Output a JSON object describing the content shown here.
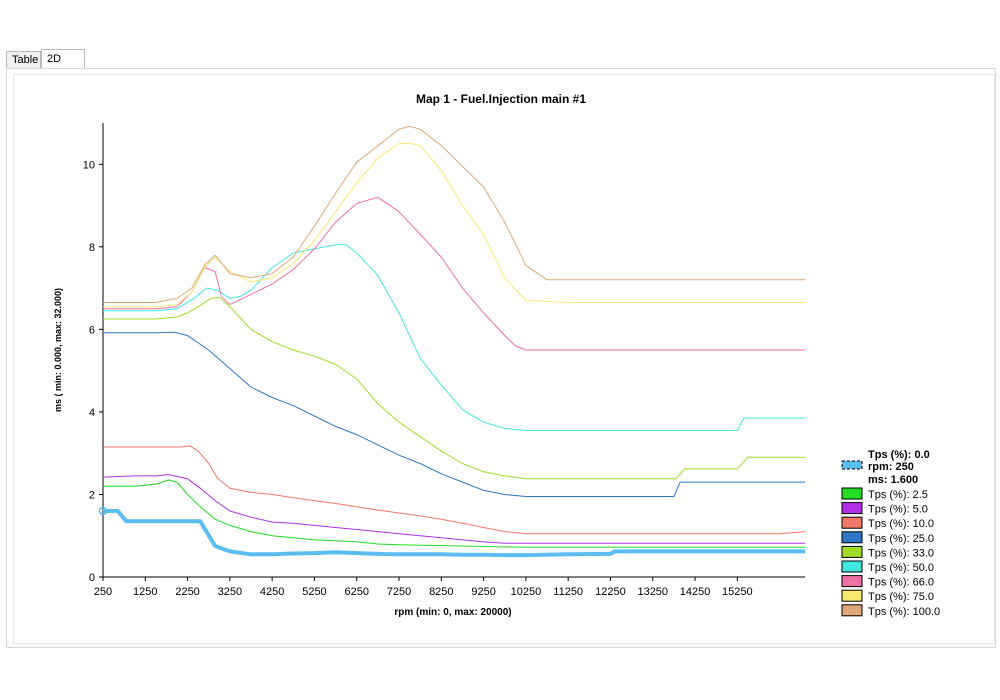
{
  "tabs": [
    {
      "label": "Table",
      "active": false
    },
    {
      "label": "2D",
      "active": true
    }
  ],
  "chart_data": {
    "type": "line",
    "title": "Map 1 - Fuel.Injection main #1",
    "xlabel": "rpm (min: 0, max: 20000)",
    "ylabel": "ms ( min: 0.000, max: 32.000)",
    "xlim": [
      250,
      16850
    ],
    "ylim": [
      0,
      11
    ],
    "x_ticks": [
      "250",
      "1250",
      "2250",
      "3250",
      "4250",
      "5250",
      "6250",
      "7250",
      "8250",
      "9250",
      "10250",
      "11250",
      "12250",
      "13250",
      "14250",
      "15250"
    ],
    "y_ticks": [
      "0",
      "2",
      "4",
      "6",
      "8",
      "10"
    ],
    "cursor": {
      "tps_label": "Tps (%): 0.0",
      "rpm_label": "rpm: 250",
      "ms_label": "ms: 1.600",
      "x": 250,
      "y": 1.6
    },
    "legend_position": "right",
    "series": [
      {
        "name": "Tps (%): 0.0",
        "color": "#5bbcf0",
        "width": 4,
        "x": [
          250,
          600,
          800,
          1200,
          2250,
          2550,
          2900,
          3250,
          3750,
          4250,
          4750,
          5250,
          5750,
          6250,
          6750,
          7250,
          7750,
          8250,
          8750,
          9250,
          9750,
          10250,
          11250,
          12250,
          12350,
          13250,
          14250,
          15250,
          16250,
          16850
        ],
        "y": [
          1.6,
          1.6,
          1.35,
          1.35,
          1.35,
          1.35,
          0.75,
          0.62,
          0.55,
          0.55,
          0.57,
          0.58,
          0.6,
          0.58,
          0.56,
          0.55,
          0.55,
          0.55,
          0.54,
          0.54,
          0.53,
          0.53,
          0.55,
          0.56,
          0.62,
          0.62,
          0.62,
          0.62,
          0.62,
          0.62
        ]
      },
      {
        "name": "Tps (%): 2.5",
        "color": "#22dd22",
        "width": 1,
        "x": [
          250,
          1000,
          1500,
          1800,
          2000,
          2250,
          2550,
          2900,
          3250,
          3750,
          4250,
          4750,
          5250,
          5750,
          6250,
          6750,
          7250,
          7750,
          8250,
          8750,
          9250,
          9750,
          10250,
          11250,
          12250,
          13250,
          14250,
          15250,
          16250,
          16850
        ],
        "y": [
          2.2,
          2.2,
          2.25,
          2.35,
          2.3,
          2.0,
          1.7,
          1.4,
          1.25,
          1.1,
          1.0,
          0.95,
          0.9,
          0.88,
          0.85,
          0.8,
          0.78,
          0.77,
          0.76,
          0.75,
          0.74,
          0.73,
          0.72,
          0.72,
          0.72,
          0.72,
          0.72,
          0.72,
          0.72,
          0.72
        ]
      },
      {
        "name": "Tps (%): 5.0",
        "color": "#b030e8",
        "width": 1,
        "x": [
          250,
          1000,
          1500,
          1800,
          2250,
          2550,
          2900,
          3250,
          3750,
          4250,
          4750,
          5250,
          5750,
          6250,
          6750,
          7250,
          7750,
          8250,
          8750,
          9250,
          9750,
          10250,
          11250,
          12250,
          13250,
          14250,
          15250,
          16250,
          16850
        ],
        "y": [
          2.42,
          2.45,
          2.45,
          2.48,
          2.38,
          2.15,
          1.85,
          1.6,
          1.45,
          1.33,
          1.3,
          1.25,
          1.2,
          1.15,
          1.1,
          1.05,
          1.0,
          0.95,
          0.9,
          0.85,
          0.82,
          0.82,
          0.82,
          0.82,
          0.82,
          0.82,
          0.82,
          0.82,
          0.82
        ]
      },
      {
        "name": "Tps (%): 10.0",
        "color": "#f07868",
        "width": 1,
        "x": [
          250,
          1000,
          1500,
          2100,
          2300,
          2500,
          2750,
          2950,
          3250,
          3750,
          4250,
          4750,
          5250,
          5750,
          6250,
          6750,
          7250,
          7750,
          8250,
          8750,
          9250,
          9750,
          10250,
          11250,
          12250,
          13250,
          14250,
          15250,
          16250,
          16850
        ],
        "y": [
          3.15,
          3.15,
          3.15,
          3.15,
          3.18,
          3.05,
          2.75,
          2.4,
          2.15,
          2.05,
          2.0,
          1.92,
          1.85,
          1.78,
          1.7,
          1.62,
          1.55,
          1.48,
          1.4,
          1.3,
          1.2,
          1.1,
          1.05,
          1.05,
          1.05,
          1.05,
          1.05,
          1.05,
          1.05,
          1.1
        ]
      },
      {
        "name": "Tps (%): 25.0",
        "color": "#2f78c8",
        "width": 1,
        "x": [
          250,
          1000,
          1500,
          1950,
          2250,
          2750,
          3250,
          3750,
          4250,
          4750,
          5250,
          5750,
          6250,
          6750,
          7250,
          7750,
          8250,
          8750,
          9250,
          9750,
          10250,
          11250,
          12250,
          13250,
          13750,
          13900,
          14250,
          15250,
          16250,
          16850
        ],
        "y": [
          5.92,
          5.92,
          5.92,
          5.93,
          5.85,
          5.5,
          5.05,
          4.6,
          4.35,
          4.15,
          3.9,
          3.65,
          3.45,
          3.2,
          2.95,
          2.75,
          2.5,
          2.3,
          2.1,
          2.0,
          1.95,
          1.95,
          1.95,
          1.95,
          1.95,
          2.3,
          2.3,
          2.3,
          2.3,
          2.3
        ]
      },
      {
        "name": "Tps (%): 33.0",
        "color": "#a0dc28",
        "width": 1,
        "x": [
          250,
          1000,
          1500,
          2000,
          2250,
          2500,
          2800,
          3000,
          3250,
          3750,
          4250,
          4750,
          5250,
          5750,
          6250,
          6750,
          7250,
          7750,
          8250,
          8750,
          9250,
          9750,
          10250,
          11250,
          12250,
          13250,
          13800,
          14000,
          15250,
          15500,
          16250,
          16850
        ],
        "y": [
          6.25,
          6.25,
          6.25,
          6.3,
          6.4,
          6.55,
          6.75,
          6.78,
          6.55,
          6.0,
          5.7,
          5.5,
          5.35,
          5.15,
          4.8,
          4.2,
          3.75,
          3.4,
          3.05,
          2.75,
          2.55,
          2.45,
          2.38,
          2.38,
          2.38,
          2.38,
          2.38,
          2.62,
          2.62,
          2.9,
          2.9,
          2.9
        ]
      },
      {
        "name": "Tps (%): 50.0",
        "color": "#40e8e0",
        "width": 1,
        "x": [
          250,
          1000,
          1500,
          2000,
          2400,
          2700,
          2950,
          3250,
          3500,
          3750,
          4250,
          4750,
          5250,
          5750,
          6000,
          6250,
          6750,
          7250,
          7750,
          8250,
          8750,
          9250,
          9750,
          10250,
          11250,
          12250,
          13250,
          14250,
          15250,
          15400,
          16250,
          16850
        ],
        "y": [
          6.45,
          6.45,
          6.45,
          6.5,
          6.75,
          7.0,
          6.95,
          6.75,
          6.8,
          6.95,
          7.5,
          7.85,
          7.95,
          8.05,
          8.05,
          7.85,
          7.3,
          6.4,
          5.3,
          4.65,
          4.05,
          3.75,
          3.6,
          3.55,
          3.55,
          3.55,
          3.55,
          3.55,
          3.55,
          3.85,
          3.85,
          3.85
        ]
      },
      {
        "name": "Tps (%): 66.0",
        "color": "#f070a8",
        "width": 1,
        "x": [
          250,
          1000,
          1500,
          2000,
          2350,
          2650,
          2900,
          3050,
          3250,
          3750,
          4250,
          4750,
          5250,
          5750,
          6250,
          6750,
          7250,
          7750,
          8250,
          8750,
          9250,
          9750,
          10000,
          10250,
          11250,
          12250,
          13250,
          14250,
          15250,
          16250,
          16850
        ],
        "y": [
          6.5,
          6.5,
          6.5,
          6.55,
          6.9,
          7.5,
          7.4,
          6.8,
          6.6,
          6.85,
          7.1,
          7.45,
          7.95,
          8.6,
          9.05,
          9.2,
          8.85,
          8.3,
          7.75,
          7.0,
          6.4,
          5.85,
          5.6,
          5.5,
          5.5,
          5.5,
          5.5,
          5.5,
          5.5,
          5.5,
          5.5
        ]
      },
      {
        "name": "Tps (%): 75.0",
        "color": "#f8e870",
        "width": 1,
        "x": [
          250,
          1000,
          1500,
          2000,
          2350,
          2650,
          2900,
          3250,
          3750,
          4250,
          4750,
          5250,
          5750,
          6250,
          6750,
          7250,
          7550,
          7750,
          8250,
          8750,
          9250,
          9750,
          10250,
          11250,
          12250,
          13250,
          14250,
          15250,
          16250,
          16850
        ],
        "y": [
          6.55,
          6.55,
          6.55,
          6.6,
          6.9,
          7.5,
          7.75,
          7.4,
          7.15,
          7.25,
          7.6,
          8.15,
          8.85,
          9.55,
          10.15,
          10.5,
          10.5,
          10.45,
          9.85,
          9.0,
          8.3,
          7.25,
          6.7,
          6.65,
          6.65,
          6.65,
          6.65,
          6.65,
          6.65,
          6.65
        ]
      },
      {
        "name": "Tps (%): 100.0",
        "color": "#e0a878",
        "width": 1,
        "x": [
          250,
          1000,
          1500,
          2000,
          2350,
          2650,
          2900,
          3250,
          3750,
          4250,
          4750,
          5250,
          5750,
          6250,
          6750,
          7250,
          7500,
          7750,
          8250,
          8750,
          9250,
          9750,
          10250,
          10750,
          11250,
          12250,
          13250,
          14250,
          15250,
          16250,
          16850
        ],
        "y": [
          6.65,
          6.65,
          6.65,
          6.75,
          7.0,
          7.55,
          7.8,
          7.35,
          7.25,
          7.35,
          7.75,
          8.5,
          9.3,
          10.05,
          10.45,
          10.85,
          10.92,
          10.85,
          10.45,
          9.95,
          9.45,
          8.6,
          7.55,
          7.2,
          7.2,
          7.2,
          7.2,
          7.2,
          7.2,
          7.2,
          7.2
        ]
      }
    ]
  }
}
